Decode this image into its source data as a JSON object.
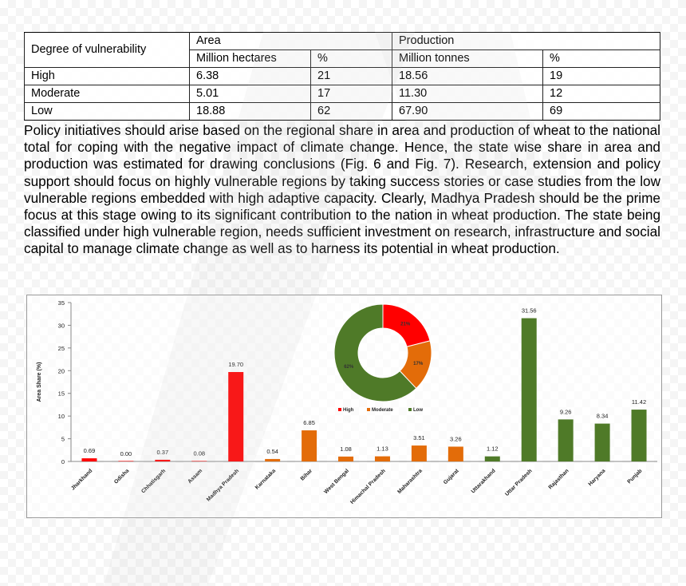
{
  "table": {
    "header": {
      "degree": "Degree of vulnerability",
      "area": "Area",
      "production": "Production",
      "area_unit": "Million hectares",
      "area_pct": "%",
      "prod_unit": "Million tonnes",
      "prod_pct": "%"
    },
    "rows": [
      {
        "degree": "High",
        "area": "6.38",
        "area_pct": "21",
        "prod": "18.56",
        "prod_pct": "19"
      },
      {
        "degree": "Moderate",
        "area": "5.01",
        "area_pct": "17",
        "prod": "11.30",
        "prod_pct": "12"
      },
      {
        "degree": "Low",
        "area": "18.88",
        "area_pct": "62",
        "prod": "67.90",
        "prod_pct": "69"
      }
    ]
  },
  "paragraph": "Policy initiatives should arise based on the regional share in area and production of wheat to the national total for coping with the negative impact of climate change. Hence, the state wise share in area and production was estimated for drawing conclusions (Fig. 6 and Fig. 7). Research, extension and policy support should focus on highly vulnerable regions by taking success stories or case studies from the low vulnerable regions embedded with high adaptive capacity. Clearly, Madhya Pradesh should be the prime focus at this stage owing to its significant contribution to the nation in wheat production. The state being classified under high vulnerable region, needs sufficient investment on research, infrastructure and social capital to manage climate change as well as to harness its potential in wheat production.",
  "chart_data": {
    "type": "bar",
    "ylabel": "Area Share (%)",
    "ylim": [
      0,
      35
    ],
    "yticks": [
      0,
      5,
      10,
      15,
      20,
      25,
      30,
      35
    ],
    "grid": false,
    "categories": [
      "Jharkhand",
      "Odisha",
      "Chhatisgarh",
      "Assam",
      "Madhya Pradesh",
      "Karnataka",
      "Bihar",
      "West Bengal",
      "Himachal Pradesh",
      "Maharashtra",
      "Gujarat",
      "Uttarakhand",
      "Uttar Pradesh",
      "Rajasthan",
      "Haryana",
      "Punjab"
    ],
    "values": [
      0.69,
      0.0,
      0.37,
      0.08,
      19.7,
      0.54,
      6.85,
      1.08,
      1.13,
      3.51,
      3.26,
      1.12,
      31.56,
      9.26,
      8.34,
      11.42
    ],
    "value_labels": [
      "0.69",
      "0.00",
      "0.37",
      "0.08",
      "19.70",
      "0.54",
      "6.85",
      "1.08",
      "1.13",
      "3.51",
      "3.26",
      "1.12",
      "31.56",
      "9.26",
      "8.34",
      "11.42"
    ],
    "groups": [
      "High",
      "High",
      "High",
      "High",
      "High",
      "Moderate",
      "Moderate",
      "Moderate",
      "Moderate",
      "Moderate",
      "Moderate",
      "Low",
      "Low",
      "Low",
      "Low",
      "Low"
    ],
    "colors": {
      "High": "#ff0000",
      "Moderate": "#e36c09",
      "Low": "#4f7a28"
    },
    "inset": {
      "type": "pie",
      "style": "donut",
      "slices": [
        {
          "name": "High",
          "value": 21,
          "label": "21%"
        },
        {
          "name": "Moderate",
          "value": 17,
          "label": "17%"
        },
        {
          "name": "Low",
          "value": 62,
          "label": "62%"
        }
      ],
      "legend": [
        "High",
        "Moderate",
        "Low"
      ],
      "legend_position": "bottom"
    }
  }
}
